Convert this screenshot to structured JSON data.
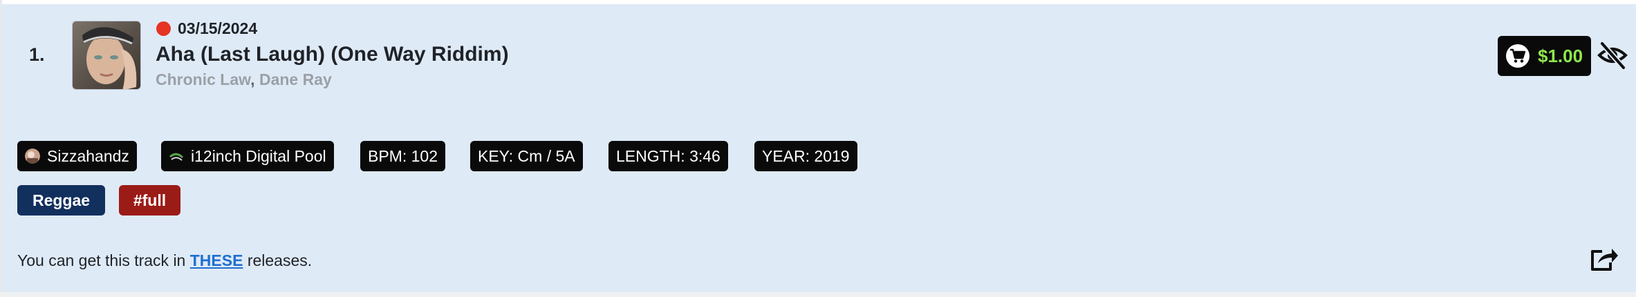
{
  "track": {
    "number": "1.",
    "date": "03/15/2024",
    "title": "Aha (Last Laugh) (One Way Riddim)",
    "artists": [
      "Chronic Law",
      "Dane Ray"
    ],
    "artist_separator": ",",
    "status_color": "#e53324"
  },
  "purchase": {
    "price": "$1.00",
    "icon": "cart-icon",
    "price_color": "#8ee84c"
  },
  "hide_icon": "eye-slash-icon",
  "meta_chips": [
    {
      "label": "Sizzahandz",
      "icon": "user-avatar"
    },
    {
      "label": "i12inch Digital Pool",
      "icon": "pool-avatar"
    },
    {
      "label": "BPM: 102"
    },
    {
      "label": "KEY: Cm / 5A"
    },
    {
      "label": "LENGTH: 3:46"
    },
    {
      "label": "YEAR: 2019"
    }
  ],
  "tags": [
    {
      "label": "Reggae",
      "color": "#12305e"
    },
    {
      "label": "#full",
      "color": "#9b1b17"
    }
  ],
  "releases_note": {
    "prefix": "You can get this track in ",
    "link": "THESE",
    "suffix": " releases."
  },
  "share_icon": "share-icon"
}
